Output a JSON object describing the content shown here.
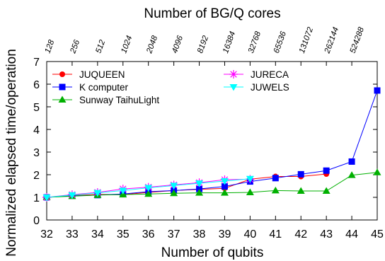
{
  "chart_data": {
    "type": "line",
    "title": "",
    "xlabel": "Number of qubits",
    "ylabel": "Normalized elapsed time/operation",
    "x2label": "Number of BG/Q cores",
    "xlim": [
      32,
      45
    ],
    "ylim": [
      0,
      7
    ],
    "x_ticks": [
      32,
      33,
      34,
      35,
      36,
      37,
      38,
      39,
      40,
      41,
      42,
      43,
      44,
      45
    ],
    "y_ticks": [
      0,
      1,
      2,
      3,
      4,
      5,
      6,
      7
    ],
    "top_ticks": [
      {
        "x": 32,
        "label": "128"
      },
      {
        "x": 33,
        "label": "256"
      },
      {
        "x": 34,
        "label": "512"
      },
      {
        "x": 35,
        "label": "1024"
      },
      {
        "x": 36,
        "label": "2048"
      },
      {
        "x": 37,
        "label": "4096"
      },
      {
        "x": 38,
        "label": "8192"
      },
      {
        "x": 39,
        "label": "16384"
      },
      {
        "x": 40,
        "label": "32768"
      },
      {
        "x": 41,
        "label": "65536"
      },
      {
        "x": 42,
        "label": "131072"
      },
      {
        "x": 43,
        "label": "262144"
      },
      {
        "x": 44,
        "label": "524288"
      }
    ],
    "grid": false,
    "legend_position": "top-left",
    "series": [
      {
        "name": "JUQUEEN",
        "color": "#ff0000",
        "marker": "circle",
        "x": [
          32,
          33,
          34,
          35,
          36,
          37,
          38,
          39,
          40,
          41,
          42,
          43
        ],
        "y": [
          1.0,
          1.08,
          1.13,
          1.12,
          1.22,
          1.3,
          1.35,
          1.4,
          1.8,
          1.92,
          1.92,
          2.03
        ]
      },
      {
        "name": "K computer",
        "color": "#0000ff",
        "marker": "square",
        "x": [
          32,
          33,
          34,
          35,
          36,
          37,
          38,
          39,
          40,
          41,
          42,
          43,
          44,
          45
        ],
        "y": [
          1.0,
          1.07,
          1.1,
          1.15,
          1.25,
          1.3,
          1.37,
          1.48,
          1.7,
          1.85,
          2.02,
          2.18,
          2.58,
          5.72
        ]
      },
      {
        "name": "Sunway TaihuLight",
        "color": "#00b000",
        "marker": "triangle",
        "x": [
          32,
          33,
          34,
          35,
          36,
          37,
          38,
          39,
          40,
          41,
          42,
          43,
          44,
          45
        ],
        "y": [
          1.0,
          1.05,
          1.1,
          1.12,
          1.15,
          1.18,
          1.2,
          1.2,
          1.22,
          1.3,
          1.28,
          1.28,
          1.98,
          2.1
        ]
      },
      {
        "name": "JURECA",
        "color": "#ff00ff",
        "marker": "star",
        "x": [
          32,
          33,
          34,
          35,
          36,
          37,
          38,
          39,
          40
        ],
        "y": [
          1.0,
          1.12,
          1.22,
          1.37,
          1.45,
          1.55,
          1.65,
          1.78,
          1.8
        ]
      },
      {
        "name": "JUWELS",
        "color": "#00ffff",
        "marker": "triangle-down",
        "x": [
          32,
          33,
          34,
          35,
          36,
          37,
          38,
          39,
          40
        ],
        "y": [
          1.0,
          1.1,
          1.2,
          1.3,
          1.42,
          1.52,
          1.62,
          1.72,
          1.82
        ]
      }
    ]
  }
}
